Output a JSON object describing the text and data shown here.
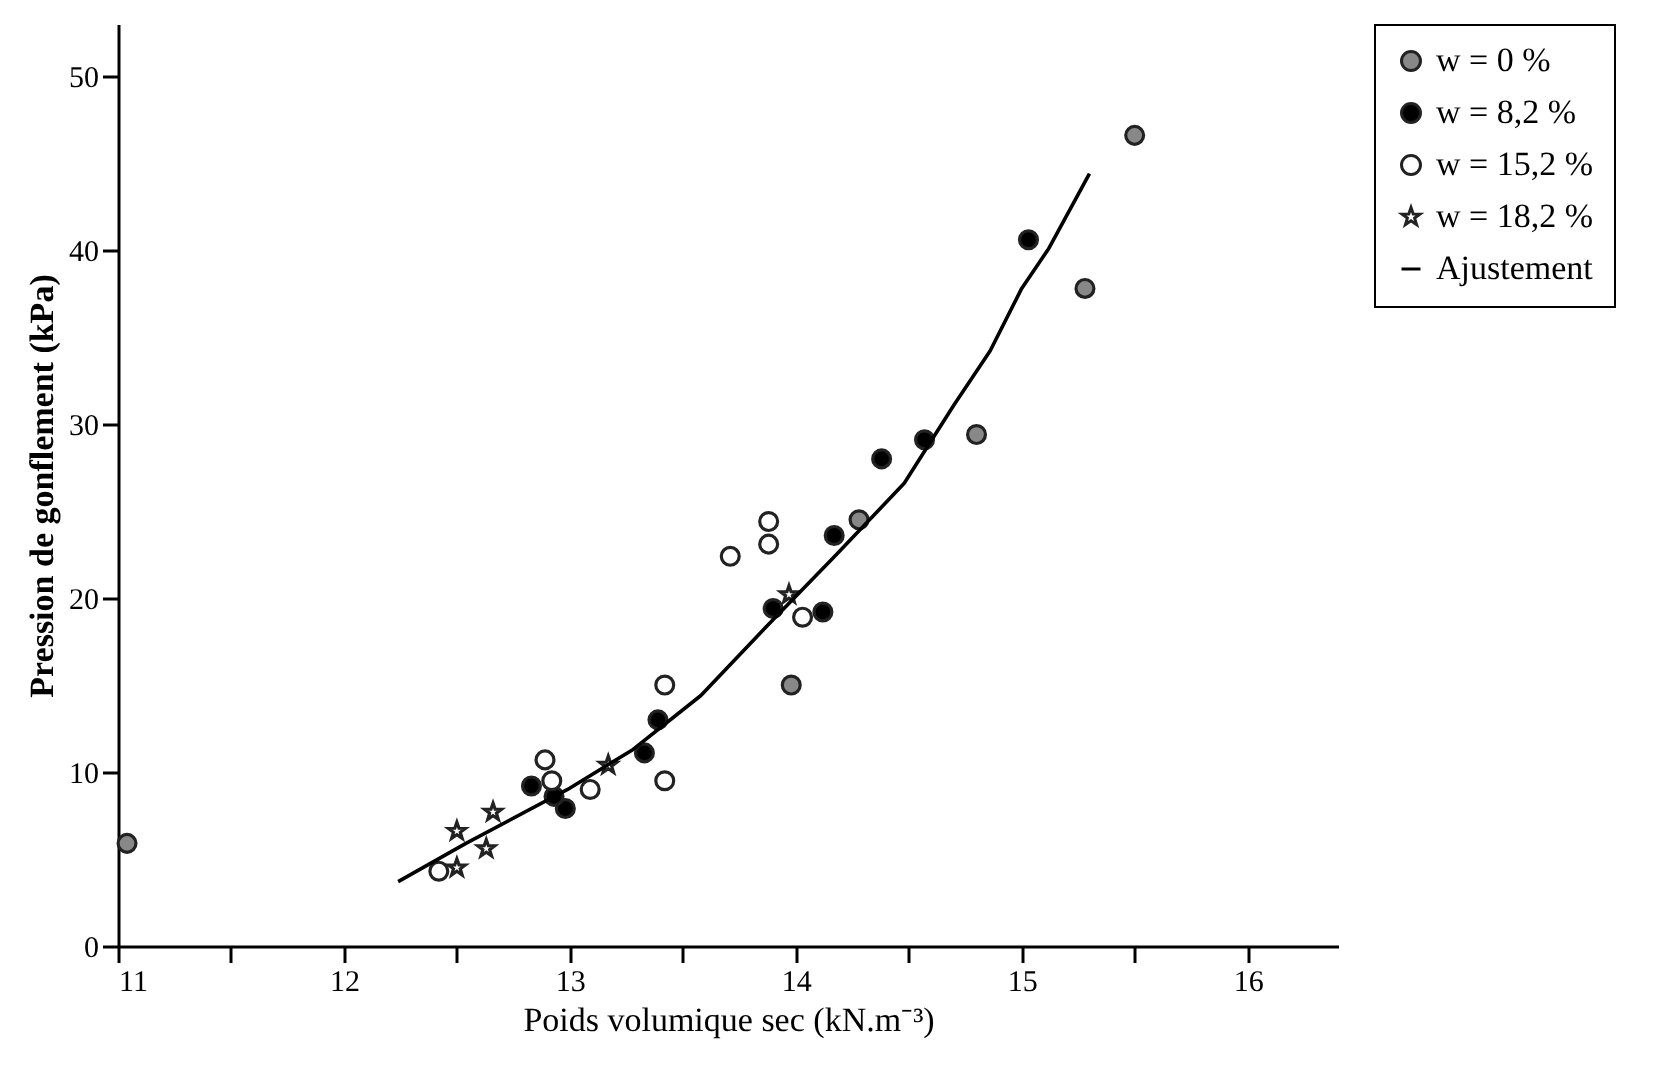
{
  "chart_data": {
    "type": "scatter",
    "xlabel": "Poids volumique sec (kN.m⁻³)",
    "ylabel": "Pression de gonflement (kPa)",
    "xlim": [
      11,
      16.4
    ],
    "ylim": [
      0,
      53
    ],
    "xticks": [
      11,
      {
        "value": 11.5,
        "label": null
      },
      12,
      {
        "value": 12.5,
        "label": null
      },
      13,
      {
        "value": 13.5,
        "label": null
      },
      14,
      {
        "value": 14.5,
        "label": null
      },
      15,
      {
        "value": 15.5,
        "label": null
      },
      16
    ],
    "yticks": [
      0,
      10,
      20,
      30,
      40,
      50
    ],
    "grid": false,
    "legend": "right",
    "series": [
      {
        "name": "w = 0 %",
        "color": "#888888",
        "marker": "circle",
        "x": [
          11.04,
          15.5,
          15.28,
          14.8,
          14.28,
          13.98
        ],
        "values": [
          5.9,
          46.6,
          37.8,
          29.4,
          24.5,
          15.0
        ]
      },
      {
        "name": "w = 8,2 %",
        "color": "#000000",
        "marker": "circle",
        "x": [
          15.03,
          14.57,
          14.38,
          14.17,
          14.12,
          13.9,
          13.39,
          13.33,
          12.83,
          12.98,
          12.93
        ],
        "values": [
          40.6,
          29.1,
          28.0,
          23.6,
          19.2,
          19.4,
          13.0,
          11.1,
          9.2,
          7.9,
          8.6
        ]
      },
      {
        "name": "w = 15,2 %",
        "color": "#ffffff",
        "marker": "circle",
        "x": [
          12.89,
          13.09,
          13.42,
          13.42,
          13.71,
          13.88,
          13.88,
          14.03,
          12.42,
          12.92
        ],
        "values": [
          10.7,
          9.0,
          15.0,
          9.5,
          22.4,
          24.4,
          23.1,
          18.9,
          4.3,
          9.5
        ]
      },
      {
        "name": "w = 18,2 %",
        "color": "#ffffff",
        "marker": "star",
        "x": [
          12.5,
          12.5,
          12.63,
          12.66,
          13.17,
          13.97
        ],
        "values": [
          6.6,
          4.5,
          5.6,
          7.7,
          10.4,
          20.2
        ]
      },
      {
        "name": "Ajustement",
        "type": "line",
        "color": "#000000",
        "marker": "none",
        "line_style": "solid",
        "x": [
          12.24,
          12.54,
          12.99,
          13.28,
          13.58,
          13.88,
          14.18,
          14.48,
          14.7,
          14.86,
          15.0,
          15.12,
          15.3
        ],
        "values": [
          3.7,
          5.9,
          9.0,
          11.3,
          14.4,
          18.5,
          22.5,
          26.6,
          31.1,
          34.2,
          37.8,
          40.1,
          44.4
        ]
      }
    ]
  }
}
